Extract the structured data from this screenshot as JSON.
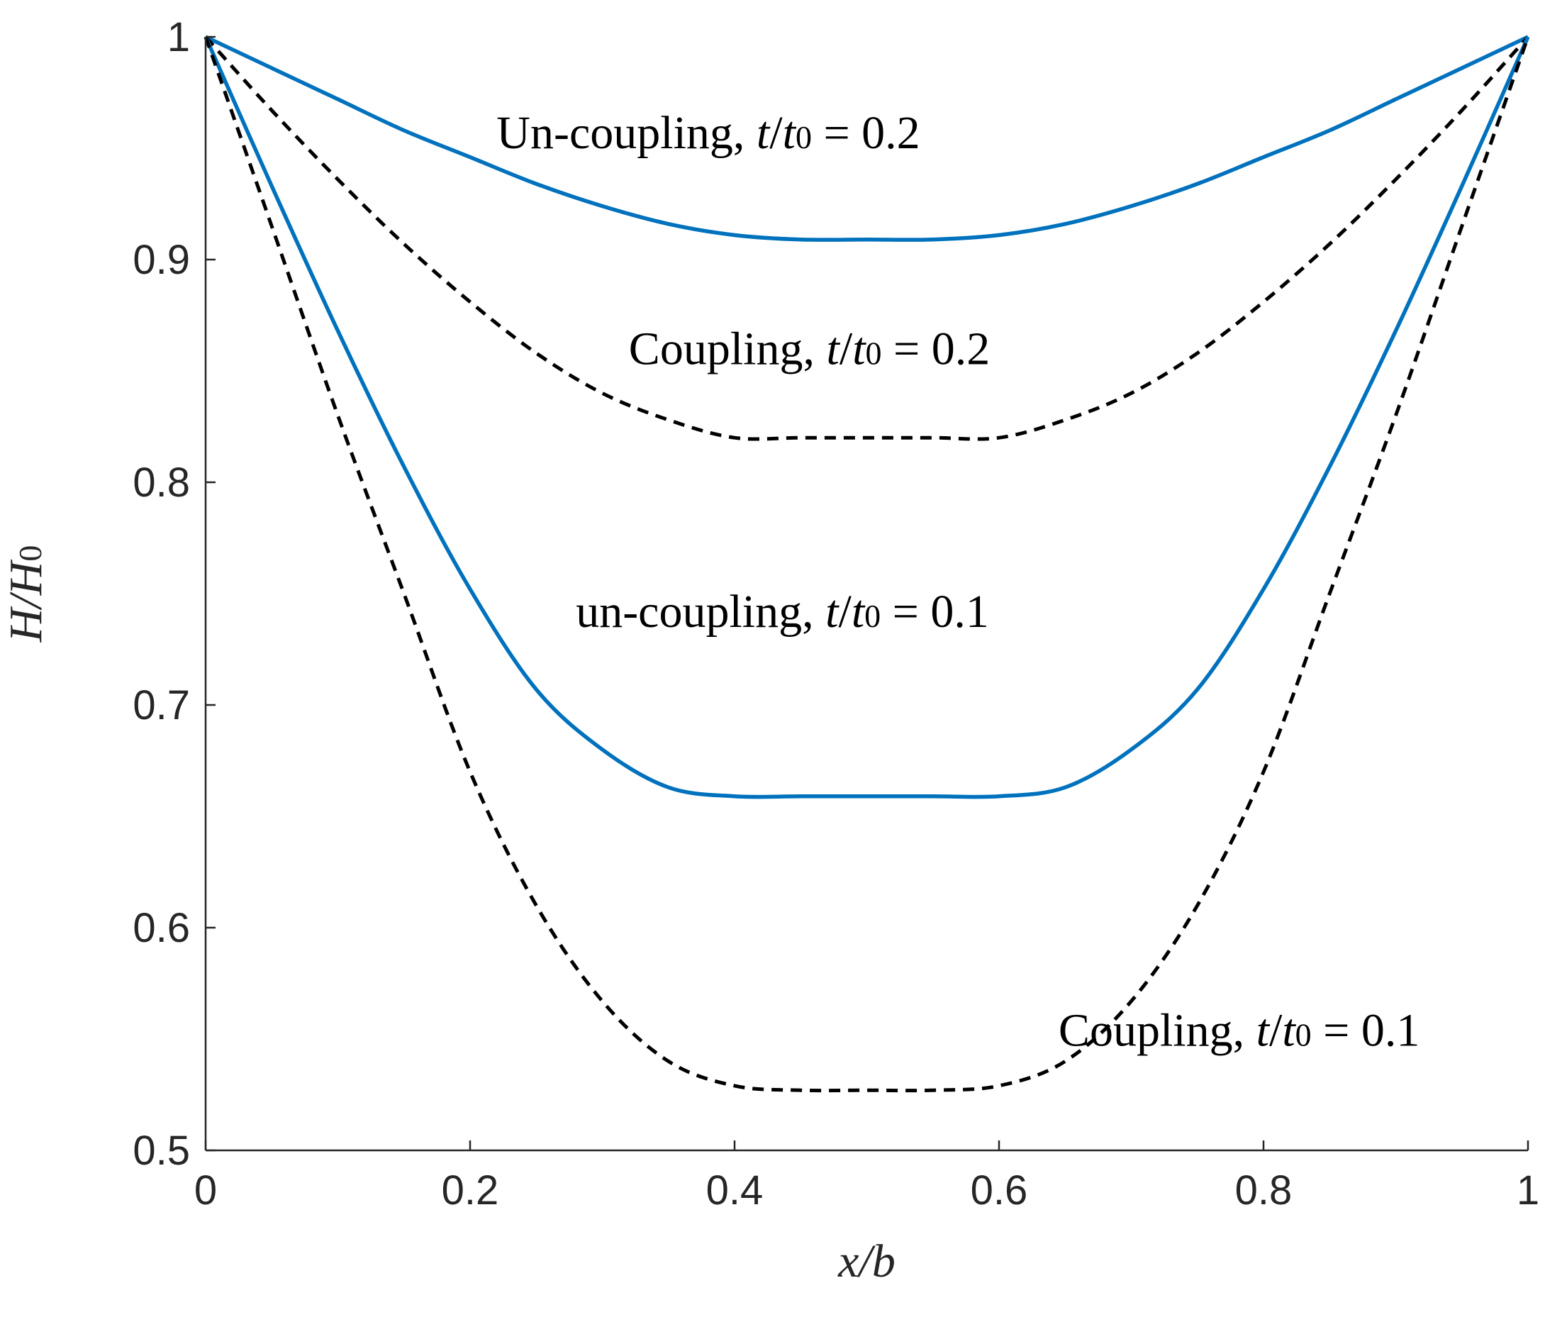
{
  "chart_data": {
    "type": "line",
    "xlabel": {
      "var": "x",
      "slash": "/",
      "denom": "b"
    },
    "ylabel": {
      "var": "H",
      "slash": "/",
      "denom": "H",
      "sub": "0"
    },
    "xlim": [
      0,
      1
    ],
    "ylim": [
      0.5,
      1
    ],
    "xticks": [
      0,
      0.2,
      0.4,
      0.6,
      0.8,
      1
    ],
    "xtick_labels": [
      "0",
      "0.2",
      "0.4",
      "0.6",
      "0.8",
      "1"
    ],
    "yticks": [
      0.5,
      0.6,
      0.7,
      0.8,
      0.9,
      1
    ],
    "ytick_labels": [
      "0.5",
      "0.6",
      "0.7",
      "0.8",
      "0.9",
      "1"
    ],
    "grid": false,
    "x": [
      0,
      0.05,
      0.1,
      0.15,
      0.2,
      0.25,
      0.3,
      0.35,
      0.4,
      0.45,
      0.5,
      0.55,
      0.6,
      0.65,
      0.7,
      0.75,
      0.8,
      0.85,
      0.9,
      0.95,
      1
    ],
    "series": [
      {
        "key": "uncoupling_02",
        "style": "solid",
        "color": "#0072BD",
        "values": [
          1.0,
          0.986,
          0.972,
          0.958,
          0.946,
          0.934,
          0.924,
          0.916,
          0.911,
          0.909,
          0.909,
          0.909,
          0.911,
          0.916,
          0.924,
          0.934,
          0.946,
          0.958,
          0.972,
          0.986,
          1.0
        ]
      },
      {
        "key": "coupling_02",
        "style": "dashed",
        "color": "#000000",
        "values": [
          1.0,
          0.967,
          0.936,
          0.907,
          0.881,
          0.858,
          0.84,
          0.828,
          0.82,
          0.82,
          0.82,
          0.82,
          0.82,
          0.828,
          0.84,
          0.858,
          0.881,
          0.907,
          0.936,
          0.967,
          1.0
        ]
      },
      {
        "key": "uncoupling_01",
        "style": "solid",
        "color": "#0072BD",
        "values": [
          1.0,
          0.933,
          0.868,
          0.807,
          0.752,
          0.707,
          0.68,
          0.663,
          0.659,
          0.659,
          0.659,
          0.659,
          0.659,
          0.663,
          0.68,
          0.707,
          0.752,
          0.807,
          0.868,
          0.933,
          1.0
        ]
      },
      {
        "key": "coupling_01",
        "style": "dashed",
        "color": "#000000",
        "values": [
          1.0,
          0.915,
          0.83,
          0.75,
          0.67,
          0.61,
          0.567,
          0.54,
          0.529,
          0.527,
          0.527,
          0.527,
          0.529,
          0.54,
          0.567,
          0.61,
          0.67,
          0.75,
          0.83,
          0.915,
          1.0
        ]
      }
    ],
    "annotations": [
      {
        "key": "uncoupling_02",
        "name": "Un-coupling,",
        "t": "t",
        "slash": "/",
        "t0": "t",
        "sub": "0",
        "eq": "= 0.2"
      },
      {
        "key": "coupling_02",
        "name": "Coupling,",
        "t": "t",
        "slash": "/",
        "t0": "t",
        "sub": "0",
        "eq": "= 0.2"
      },
      {
        "key": "uncoupling_01",
        "name": "un-coupling,",
        "t": "t",
        "slash": "/",
        "t0": "t",
        "sub": "0",
        "eq": "= 0.1"
      },
      {
        "key": "coupling_01",
        "name": "Coupling,",
        "t": "t",
        "slash": "/",
        "t0": "t",
        "sub": "0",
        "eq": "= 0.1"
      }
    ]
  }
}
